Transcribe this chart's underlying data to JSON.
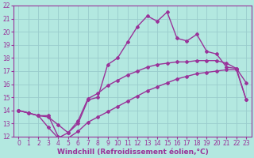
{
  "xlabel": "Windchill (Refroidissement éolien,°C)",
  "bg_color": "#b3e8e0",
  "grid_color": "#99cccc",
  "line_color": "#993399",
  "xlim": [
    -0.5,
    23.5
  ],
  "ylim": [
    12,
    22
  ],
  "xticks": [
    0,
    1,
    2,
    3,
    4,
    5,
    6,
    7,
    8,
    9,
    10,
    11,
    12,
    13,
    14,
    15,
    16,
    17,
    18,
    19,
    20,
    21,
    22,
    23
  ],
  "yticks": [
    12,
    13,
    14,
    15,
    16,
    17,
    18,
    19,
    20,
    21,
    22
  ],
  "line1_x": [
    0,
    1,
    2,
    3,
    4,
    5,
    6,
    7,
    8,
    9,
    10,
    11,
    12,
    13,
    14,
    15,
    16,
    17,
    18,
    19,
    20,
    21,
    22,
    23
  ],
  "line1_y": [
    14.0,
    13.8,
    13.6,
    13.6,
    12.0,
    11.9,
    12.4,
    13.1,
    13.5,
    13.9,
    14.3,
    14.7,
    15.1,
    15.5,
    15.8,
    16.1,
    16.4,
    16.6,
    16.8,
    16.9,
    17.0,
    17.1,
    17.1,
    14.8
  ],
  "line2_x": [
    0,
    1,
    2,
    3,
    4,
    5,
    6,
    7,
    8,
    9,
    10,
    11,
    12,
    13,
    14,
    15,
    16,
    17,
    18,
    19,
    20,
    21,
    22,
    23
  ],
  "line2_y": [
    14.0,
    13.8,
    13.6,
    12.7,
    11.9,
    12.3,
    13.0,
    14.8,
    15.0,
    17.5,
    18.0,
    19.2,
    20.4,
    21.2,
    20.8,
    21.5,
    19.5,
    19.3,
    19.8,
    18.5,
    18.3,
    17.3,
    17.2,
    16.1
  ],
  "line3_x": [
    0,
    1,
    2,
    3,
    4,
    5,
    6,
    7,
    8,
    9,
    10,
    11,
    12,
    13,
    14,
    15,
    16,
    17,
    18,
    19,
    20,
    21,
    22,
    23
  ],
  "line3_y": [
    14.0,
    13.8,
    13.6,
    13.5,
    12.9,
    12.3,
    13.2,
    14.9,
    15.3,
    15.9,
    16.3,
    16.7,
    17.0,
    17.3,
    17.5,
    17.6,
    17.7,
    17.7,
    17.8,
    17.8,
    17.8,
    17.6,
    17.2,
    14.8
  ],
  "marker": "D",
  "markersize": 2.0,
  "linewidth": 1.0,
  "tick_fontsize": 5.5,
  "xlabel_fontsize": 6.5
}
